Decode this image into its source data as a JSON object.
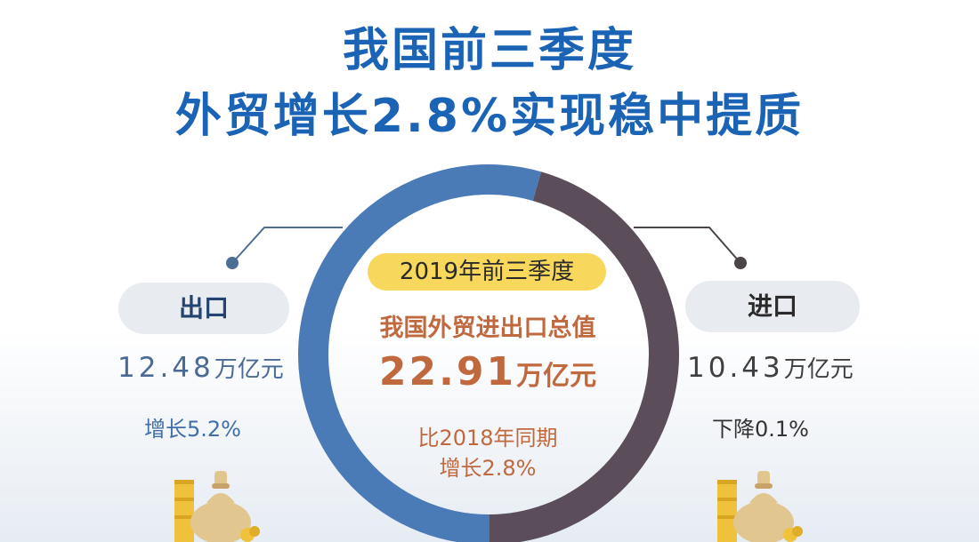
{
  "title": {
    "line1": "我国前三季度",
    "line2": "外贸增长2.8%实现稳中提质"
  },
  "center": {
    "period": "2019年前三季度",
    "label": "我国外贸进出口总值",
    "total_value": "22.91",
    "total_unit": "万亿元",
    "compare_line1": "比2018年同期",
    "compare_line2": "增长2.8%"
  },
  "export": {
    "label": "出口",
    "value": "12.48",
    "unit": "万亿元",
    "change": "增长5.2%"
  },
  "import": {
    "label": "进口",
    "value": "10.43",
    "unit": "万亿元",
    "change": "下降0.1%"
  },
  "colors": {
    "title": "#1a63b5",
    "export_segment": "#4a7bb7",
    "import_segment": "#5b4e5a",
    "accent_text": "#c1693e",
    "period_pill": "#f7d75c"
  },
  "chart_data": {
    "type": "pie",
    "categories": [
      "出口",
      "进口"
    ],
    "values": [
      12.48,
      10.43
    ]
  }
}
